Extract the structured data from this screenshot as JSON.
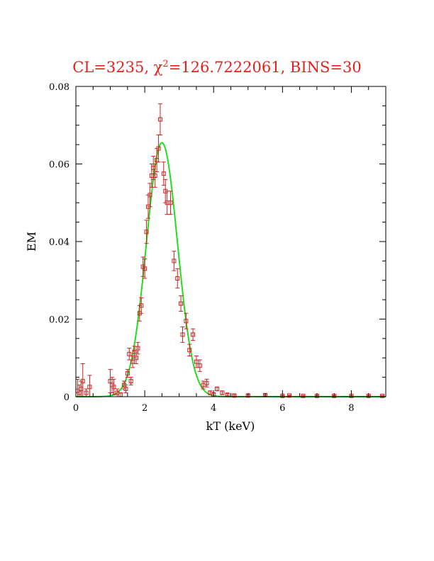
{
  "chart_data": {
    "type": "scatter",
    "title_prefix": "CL=3235, ",
    "title_chi": "χ",
    "title_sup": "2",
    "title_suffix": "=126.7222061, BINS=30",
    "xlabel": "kT (keV)",
    "ylabel": "EM",
    "xlim": [
      0,
      9
    ],
    "ylim": [
      0,
      0.08
    ],
    "xticks": [
      "0",
      "2",
      "4",
      "6",
      "8"
    ],
    "yticks": [
      "0",
      "0.02",
      "0.04",
      "0.06",
      "0.08"
    ],
    "colors": {
      "points": "#d02020",
      "fit": "#22dd22",
      "title": "#e8201c"
    },
    "series": [
      {
        "kind": "points-with-errorbars",
        "points": [
          [
            0.05,
            0.0015,
            0.003
          ],
          [
            0.1,
            0.001,
            0.002
          ],
          [
            0.15,
            0.002,
            0.002
          ],
          [
            0.2,
            0.004,
            0.0045
          ],
          [
            0.3,
            0.001,
            0.001
          ],
          [
            0.4,
            0.0025,
            0.003
          ],
          [
            1.0,
            0.004,
            0.003
          ],
          [
            1.05,
            0.003,
            0.002
          ],
          [
            1.1,
            0.0025,
            0.002
          ],
          [
            1.2,
            0.001,
            0.001
          ],
          [
            1.3,
            0.0005,
            0.0005
          ],
          [
            1.4,
            0.003,
            0.001
          ],
          [
            1.45,
            0.002,
            0.001
          ],
          [
            1.5,
            0.006,
            0.001
          ],
          [
            1.55,
            0.011,
            0.0015
          ],
          [
            1.6,
            0.004,
            0.001
          ],
          [
            1.65,
            0.009,
            0.0015
          ],
          [
            1.7,
            0.0115,
            0.0015
          ],
          [
            1.75,
            0.01,
            0.0015
          ],
          [
            1.8,
            0.0125,
            0.0015
          ],
          [
            1.85,
            0.0215,
            0.002
          ],
          [
            1.9,
            0.0235,
            0.002
          ],
          [
            1.95,
            0.0335,
            0.0025
          ],
          [
            2.0,
            0.033,
            0.0025
          ],
          [
            2.05,
            0.0425,
            0.003
          ],
          [
            2.1,
            0.049,
            0.003
          ],
          [
            2.15,
            0.052,
            0.003
          ],
          [
            2.2,
            0.057,
            0.003
          ],
          [
            2.25,
            0.059,
            0.003
          ],
          [
            2.3,
            0.057,
            0.003
          ],
          [
            2.35,
            0.061,
            0.003
          ],
          [
            2.4,
            0.064,
            0.0035
          ],
          [
            2.45,
            0.0715,
            0.004
          ],
          [
            2.55,
            0.0575,
            0.003
          ],
          [
            2.6,
            0.053,
            0.003
          ],
          [
            2.65,
            0.05,
            0.003
          ],
          [
            2.75,
            0.05,
            0.003
          ],
          [
            2.85,
            0.035,
            0.0025
          ],
          [
            2.95,
            0.0305,
            0.0025
          ],
          [
            3.05,
            0.024,
            0.002
          ],
          [
            3.1,
            0.016,
            0.002
          ],
          [
            3.2,
            0.0195,
            0.002
          ],
          [
            3.3,
            0.012,
            0.0015
          ],
          [
            3.4,
            0.016,
            0.0015
          ],
          [
            3.5,
            0.009,
            0.0015
          ],
          [
            3.6,
            0.008,
            0.0015
          ],
          [
            3.7,
            0.003,
            0.001
          ],
          [
            3.8,
            0.0035,
            0.001
          ],
          [
            3.9,
            0.001,
            0.0005
          ],
          [
            4.0,
            0.0005,
            0.0005
          ],
          [
            4.1,
            0.002,
            0.0005
          ],
          [
            4.25,
            0.001,
            0.0005
          ],
          [
            4.4,
            0.0005,
            0.0003
          ],
          [
            4.6,
            0.0003,
            0.0002
          ],
          [
            5.0,
            0.0003,
            0.0002
          ],
          [
            5.5,
            0.0004,
            0.0002
          ],
          [
            6.0,
            0.0002,
            0.0001
          ],
          [
            6.2,
            0.0003,
            0.0001
          ],
          [
            6.6,
            0.0002,
            0.0001
          ],
          [
            7.0,
            0.0002,
            0.0001
          ],
          [
            7.5,
            0.0002,
            0.0001
          ],
          [
            8.0,
            0.0002,
            0.0001
          ],
          [
            8.5,
            0.0002,
            0.0001
          ],
          [
            8.9,
            0.0002,
            0.0001
          ]
        ]
      },
      {
        "kind": "fit-curve",
        "amplitude": 0.0655,
        "center": 2.5,
        "sigma": 0.45
      }
    ]
  }
}
